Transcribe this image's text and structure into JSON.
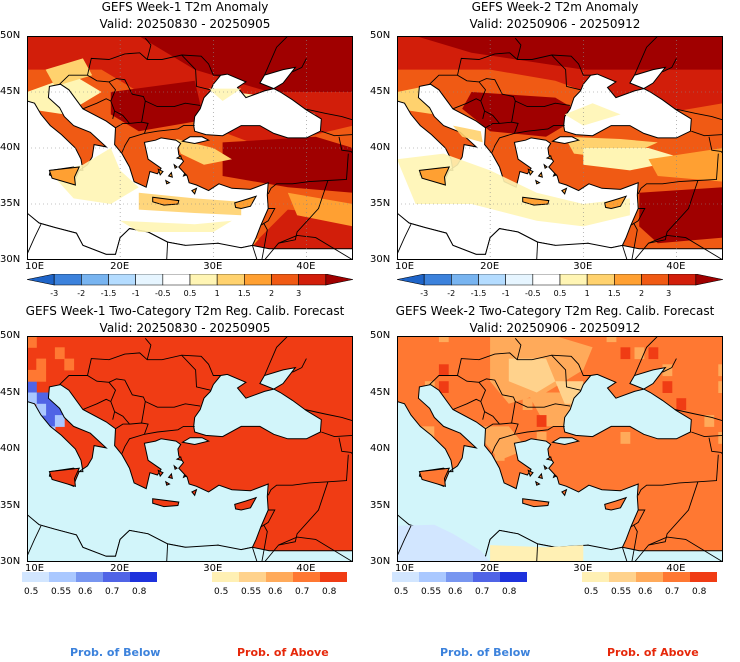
{
  "panels": [
    {
      "id": "p1",
      "title": "GEFS Week-1 T2m Anomaly",
      "valid": "Valid: 20250830 - 20250905"
    },
    {
      "id": "p2",
      "title": "GEFS Week-2 T2m Anomaly",
      "valid": "Valid: 20250906 - 20250912"
    },
    {
      "id": "p3",
      "title": "GEFS Week-1 Two-Category T2m Reg. Calib. Forecast",
      "valid": "Valid: 20250830 - 20250905"
    },
    {
      "id": "p4",
      "title": "GEFS Week-2 Two-Category T2m Reg. Calib. Forecast",
      "valid": "Valid: 20250906 - 20250912"
    }
  ],
  "axes": {
    "lat_labels": [
      "30N",
      "35N",
      "40N",
      "45N",
      "50N"
    ],
    "lon_labels": [
      "10E",
      "20E",
      "30E",
      "40E"
    ]
  },
  "anomaly_colorbar": {
    "labels": [
      "-3",
      "-2",
      "-1.5",
      "-1",
      "-0.5",
      "0.5",
      "1",
      "1.5",
      "2",
      "3"
    ],
    "colors": [
      "#1e64c8",
      "#3c82dc",
      "#78b4f0",
      "#b4dcff",
      "#e6f5ff",
      "#ffffff",
      "#fff5b4",
      "#ffd26e",
      "#ffa032",
      "#f05a14",
      "#d21e0a",
      "#a00000"
    ]
  },
  "below_colorbar": {
    "labels": [
      "0.5",
      "0.55",
      "0.6",
      "0.7",
      "0.8"
    ],
    "colors": [
      "#d2e6ff",
      "#aac8ff",
      "#7896f0",
      "#5064e6",
      "#1e32dc"
    ]
  },
  "above_colorbar": {
    "labels": [
      "0.5",
      "0.55",
      "0.6",
      "0.7",
      "0.8"
    ],
    "colors": [
      "#fff0b4",
      "#ffd28c",
      "#ffaa5a",
      "#ff7832",
      "#f03c14"
    ]
  },
  "legend": {
    "below": "Prob. of Below",
    "above": "Prob. of Above",
    "below_color": "#3c82dc",
    "above_color": "#e6280a"
  },
  "colors": {
    "sea_prob": "#d2f5fa",
    "sea_anom": "#ffffff",
    "coast": "#000000"
  }
}
